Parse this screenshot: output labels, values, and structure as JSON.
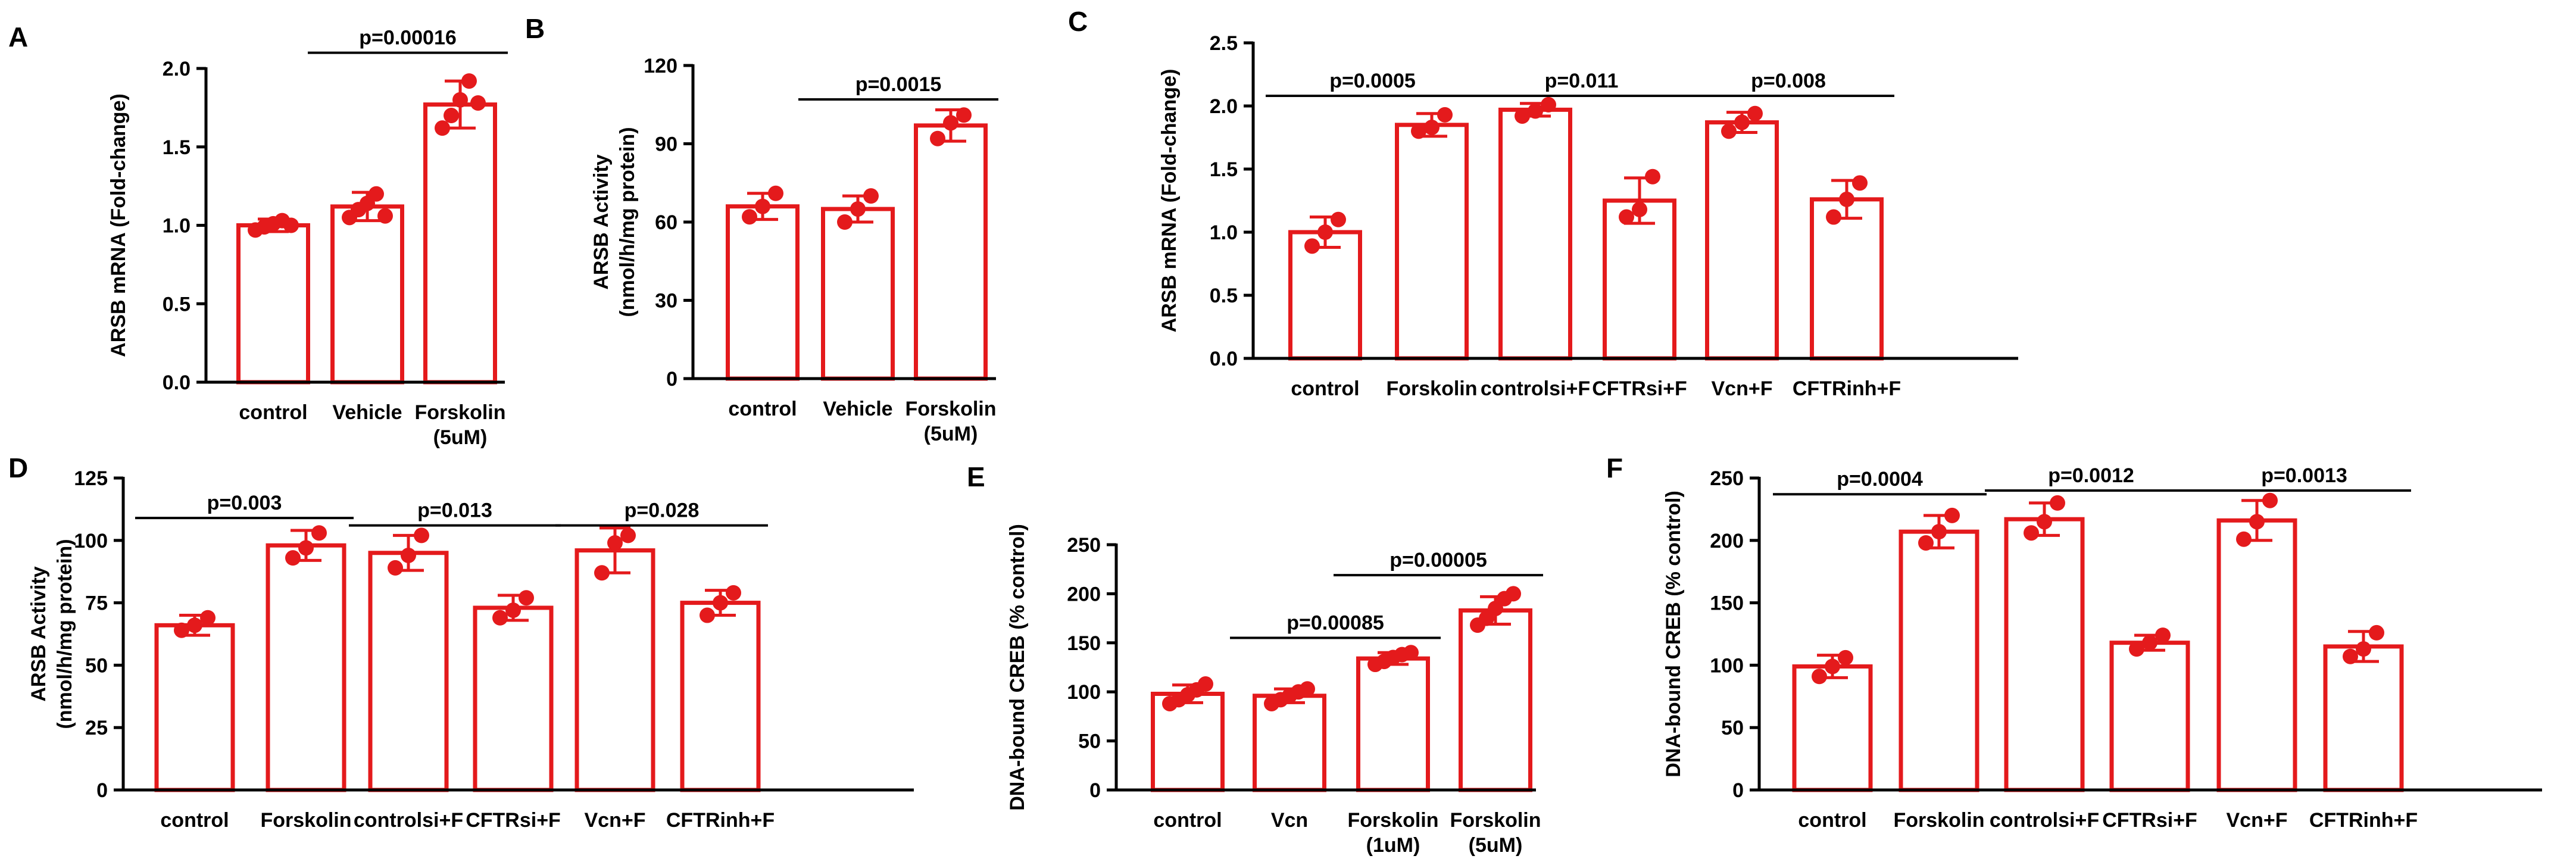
{
  "colors": {
    "bar": "#e41a1c",
    "fill": "#ffffff",
    "axis": "#000000",
    "text": "#000000"
  },
  "chart_data": [
    {
      "id": "A",
      "panel_label": "A",
      "type": "bar",
      "ylabel": "ARSB mRNA (Fold-change)",
      "ylim": [
        0,
        2.0
      ],
      "yticks": [
        0,
        0.5,
        1.0,
        1.5,
        2.0
      ],
      "ytick_labels": [
        "0.0",
        "0.5",
        "1.0",
        "1.5",
        "2.0"
      ],
      "categories": [
        "control",
        "Vehicle",
        "Forskolin\n(5uM)"
      ],
      "values": [
        1.0,
        1.12,
        1.77
      ],
      "errors": [
        0.04,
        0.09,
        0.15
      ],
      "points": [
        [
          0.97,
          0.99,
          1.01,
          1.03,
          1.0
        ],
        [
          1.05,
          1.1,
          1.14,
          1.2,
          1.06
        ],
        [
          1.62,
          1.7,
          1.8,
          1.92,
          1.78
        ]
      ],
      "comparisons": [
        {
          "from": 1,
          "to": 2,
          "label": "p=0.00016",
          "y": 2.1
        }
      ]
    },
    {
      "id": "B",
      "panel_label": "B",
      "type": "bar",
      "ylabel": "ARSB Activity\n(nmol/h/mg protein)",
      "ylim": [
        0,
        120
      ],
      "yticks": [
        0,
        30,
        60,
        90,
        120
      ],
      "ytick_labels": [
        "0",
        "30",
        "60",
        "90",
        "120"
      ],
      "categories": [
        "control",
        "Vehicle",
        "Forskolin\n(5uM)"
      ],
      "values": [
        66,
        65,
        97
      ],
      "errors": [
        5,
        5,
        6
      ],
      "points": [
        [
          62,
          66,
          71
        ],
        [
          60,
          65,
          70
        ],
        [
          92,
          98,
          101
        ]
      ],
      "comparisons": [
        {
          "from": 1,
          "to": 2,
          "label": "p=0.0015",
          "y": 107
        }
      ]
    },
    {
      "id": "C",
      "panel_label": "C",
      "type": "bar",
      "ylabel": "ARSB mRNA (Fold-change)",
      "ylim": [
        0,
        2.5
      ],
      "yticks": [
        0,
        0.5,
        1.0,
        1.5,
        2.0,
        2.5
      ],
      "ytick_labels": [
        "0.0",
        "0.5",
        "1.0",
        "1.5",
        "2.0",
        "2.5"
      ],
      "categories": [
        "control",
        "Forskolin",
        "controlsi+F",
        "CFTRsi+F",
        "Vcn+F",
        "CFTRinh+F"
      ],
      "values": [
        1.0,
        1.85,
        1.97,
        1.25,
        1.87,
        1.26
      ],
      "errors": [
        0.12,
        0.09,
        0.05,
        0.18,
        0.08,
        0.15
      ],
      "points": [
        [
          0.89,
          1.0,
          1.1
        ],
        [
          1.8,
          1.83,
          1.93
        ],
        [
          1.92,
          1.96,
          2.01
        ],
        [
          1.12,
          1.18,
          1.44
        ],
        [
          1.8,
          1.87,
          1.94
        ],
        [
          1.12,
          1.26,
          1.39
        ]
      ],
      "comparisons": [
        {
          "from": 0,
          "to": 1,
          "label": "p=0.0005",
          "y": 2.08
        },
        {
          "from": 2,
          "to": 3,
          "label": "p=0.011",
          "y": 2.08
        },
        {
          "from": 4,
          "to": 5,
          "label": "p=0.008",
          "y": 2.08
        }
      ]
    },
    {
      "id": "D",
      "panel_label": "D",
      "type": "bar",
      "ylabel": "ARSB Activity\n(nmol/h/mg protein)",
      "ylim": [
        0,
        125
      ],
      "yticks": [
        0,
        25,
        50,
        75,
        100,
        125
      ],
      "ytick_labels": [
        "0",
        "25",
        "50",
        "75",
        "100",
        "125"
      ],
      "categories": [
        "control",
        "Forskolin",
        "controlsi+F",
        "CFTRsi+F",
        "Vcn+F",
        "CFTRinh+F"
      ],
      "values": [
        66,
        98,
        95,
        73,
        96,
        75
      ],
      "errors": [
        4,
        6,
        7,
        5,
        9,
        5
      ],
      "points": [
        [
          64,
          66,
          69
        ],
        [
          93,
          97,
          103
        ],
        [
          89,
          94,
          102
        ],
        [
          69,
          72,
          77
        ],
        [
          87,
          99,
          102
        ],
        [
          70,
          75,
          79
        ]
      ],
      "comparisons": [
        {
          "from": 0,
          "to": 1,
          "label": "p=0.003",
          "y": 109
        },
        {
          "from": 2,
          "to": 3,
          "label": "p=0.013",
          "y": 106
        },
        {
          "from": 4,
          "to": 5,
          "label": "p=0.028",
          "y": 106
        }
      ]
    },
    {
      "id": "E",
      "panel_label": "E",
      "type": "bar",
      "ylabel": "DNA-bound CREB (% control)",
      "ylim": [
        0,
        250
      ],
      "yticks": [
        0,
        50,
        100,
        150,
        200,
        250
      ],
      "ytick_labels": [
        "0",
        "50",
        "100",
        "150",
        "200",
        "250"
      ],
      "categories": [
        "control",
        "Vcn",
        "Forskolin\n(1uM)",
        "Forskolin\n(5uM)"
      ],
      "values": [
        98,
        96,
        134,
        183
      ],
      "errors": [
        9,
        7,
        6,
        14
      ],
      "points": [
        [
          88,
          92,
          97,
          102,
          108
        ],
        [
          88,
          92,
          96,
          100,
          103
        ],
        [
          128,
          131,
          135,
          138,
          140
        ],
        [
          168,
          175,
          185,
          195,
          200
        ]
      ],
      "comparisons": [
        {
          "from": 1,
          "to": 2,
          "label": "p=0.00085",
          "y": 155
        },
        {
          "from": 2,
          "to": 3,
          "label": "p=0.00005",
          "y": 219
        }
      ]
    },
    {
      "id": "F",
      "panel_label": "F",
      "type": "bar",
      "ylabel": "DNA-bound CREB (% control)",
      "ylim": [
        0,
        250
      ],
      "yticks": [
        0,
        50,
        100,
        150,
        200,
        250
      ],
      "ytick_labels": [
        "0",
        "50",
        "100",
        "150",
        "200",
        "250"
      ],
      "categories": [
        "control",
        "Forskolin",
        "controlsi+F",
        "CFTRsi+F",
        "Vcn+F",
        "CFTRinh+F"
      ],
      "values": [
        99,
        207,
        217,
        118,
        216,
        115
      ],
      "errors": [
        9,
        13,
        13,
        6,
        16,
        12
      ],
      "points": [
        [
          91,
          99,
          106
        ],
        [
          198,
          207,
          220
        ],
        [
          206,
          215,
          230
        ],
        [
          113,
          118,
          124
        ],
        [
          201,
          215,
          232
        ],
        [
          107,
          113,
          126
        ]
      ],
      "comparisons": [
        {
          "from": 0,
          "to": 1,
          "label": "p=0.0004",
          "y": 237
        },
        {
          "from": 2,
          "to": 3,
          "label": "p=0.0012",
          "y": 240
        },
        {
          "from": 4,
          "to": 5,
          "label": "p=0.0013",
          "y": 240
        }
      ]
    }
  ]
}
